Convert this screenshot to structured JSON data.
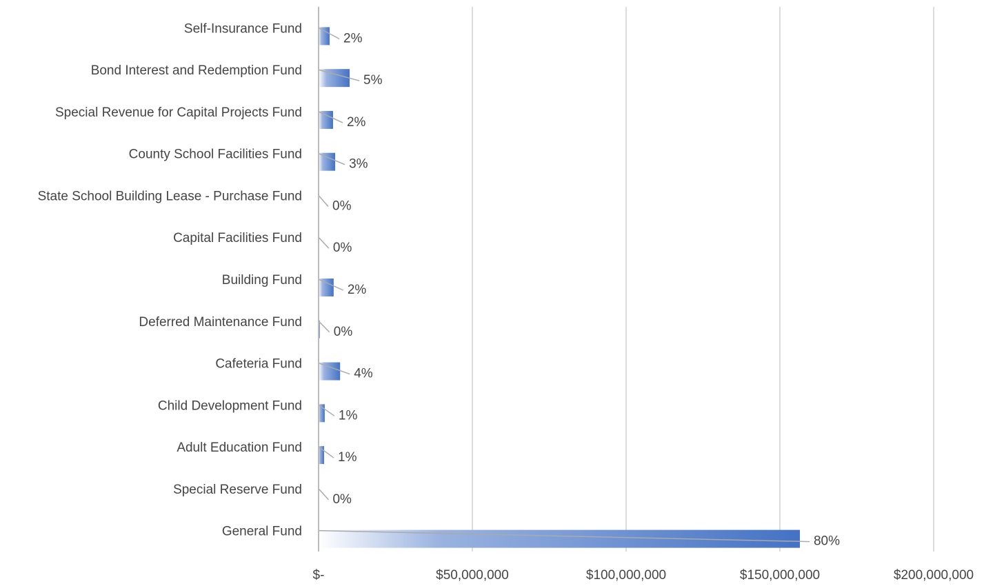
{
  "chart_data": {
    "type": "bar",
    "orientation": "horizontal",
    "categories": [
      "Self-Insurance Fund",
      "Bond Interest and Redemption Fund",
      "Special Revenue for Capital Projects Fund",
      "County School Facilities Fund",
      "State School Building Lease - Purchase Fund",
      "Capital Facilities Fund",
      "Building Fund",
      "Deferred Maintenance Fund",
      "Cafeteria Fund",
      "Child Development Fund",
      "Adult Education Fund",
      "Special Reserve Fund",
      "General Fund"
    ],
    "values": [
      3600000,
      10100000,
      4700000,
      5400000,
      0,
      200000,
      4900000,
      400000,
      7000000,
      2000000,
      1800000,
      100000,
      156500000
    ],
    "value_labels": [
      "2%",
      "5%",
      "2%",
      "3%",
      "0%",
      "0%",
      "2%",
      "0%",
      "4%",
      "1%",
      "1%",
      "0%",
      "80%"
    ],
    "color": "#4472c4",
    "xlim": [
      0,
      200000000
    ],
    "xticks": [
      {
        "value": 0,
        "label": "$-"
      },
      {
        "value": 50000000,
        "label": "$50,000,000"
      },
      {
        "value": 100000000,
        "label": "$100,000,000"
      },
      {
        "value": 150000000,
        "label": "$150,000,000"
      },
      {
        "value": 200000000,
        "label": "$200,000,000"
      }
    ],
    "grid": true
  }
}
